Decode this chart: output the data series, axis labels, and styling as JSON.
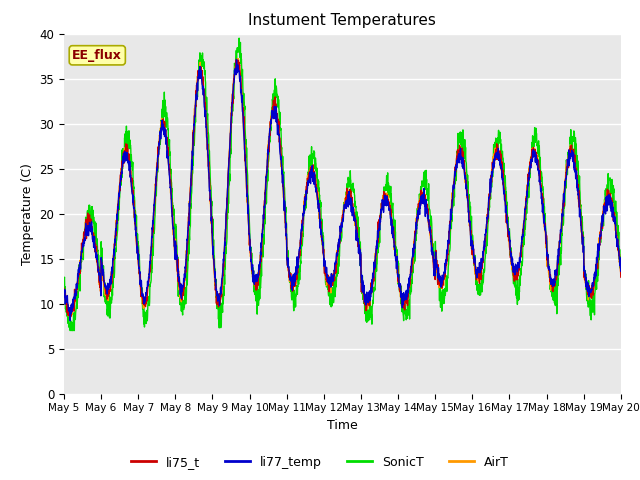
{
  "title": "Instument Temperatures",
  "xlabel": "Time",
  "ylabel": "Temperature (C)",
  "ylim": [
    0,
    40
  ],
  "annotation_text": "EE_flux",
  "bg_color": "#e8e8e8",
  "fig_bg": "#ffffff",
  "series": {
    "li75_t": {
      "color": "#cc0000",
      "lw": 1.0
    },
    "li77_temp": {
      "color": "#0000cc",
      "lw": 1.0
    },
    "SonicT": {
      "color": "#00dd00",
      "lw": 1.0
    },
    "AirT": {
      "color": "#ff9900",
      "lw": 1.0
    }
  },
  "tick_labels": [
    "May 5",
    "May 6",
    "May 7",
    "May 8",
    "May 9",
    "May 10",
    "May 11",
    "May 12",
    "May 13",
    "May 14",
    "May 15",
    "May 16",
    "May 17",
    "May 18",
    "May 19",
    "May 20"
  ],
  "yticks": [
    0,
    5,
    10,
    15,
    20,
    25,
    30,
    35,
    40
  ]
}
